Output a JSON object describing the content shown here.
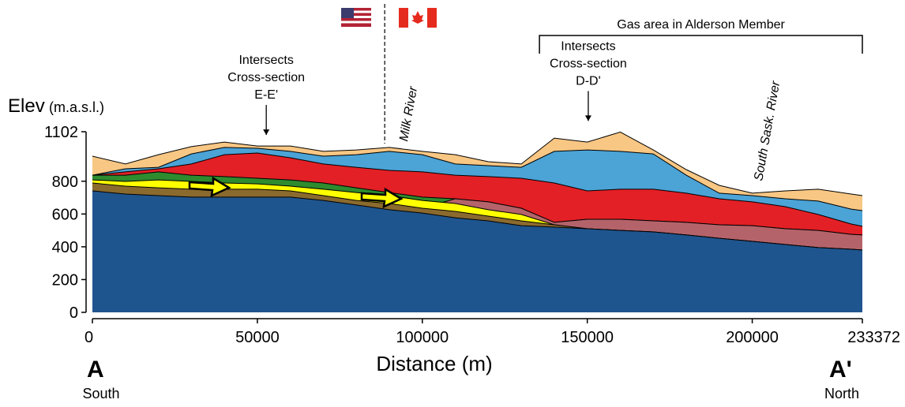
{
  "chart_data": {
    "type": "layered-area",
    "y_label": "Elev",
    "y_label_unit": "(m.a.s.l.)",
    "x_label": "Distance (m)",
    "start": {
      "label": "A",
      "direction": "South"
    },
    "end": {
      "label": "A'",
      "direction": "North"
    },
    "xlim": [
      0,
      233372
    ],
    "ylim": [
      0,
      1102
    ],
    "xticks": [
      0,
      50000,
      100000,
      150000,
      200000,
      233372
    ],
    "yticks": [
      0,
      200,
      400,
      600,
      800,
      1102
    ],
    "x": [
      0,
      10000,
      20000,
      30000,
      40000,
      50000,
      60000,
      70000,
      80000,
      90000,
      100000,
      110000,
      120000,
      130000,
      140000,
      150000,
      160000,
      170000,
      180000,
      190000,
      200000,
      210000,
      220000,
      230000,
      233372
    ],
    "series": [
      {
        "color": "#f9c784",
        "values": [
          953,
          905,
          962,
          1011,
          1039,
          1015,
          1015,
          982,
          991,
          1006,
          982,
          962,
          919,
          905,
          1063,
          1039,
          1100,
          991,
          871,
          775,
          727,
          741,
          751,
          722,
          712
        ]
      },
      {
        "color": "#4ba3d6",
        "values": [
          837,
          876,
          885,
          967,
          1006,
          1001,
          982,
          953,
          962,
          982,
          962,
          905,
          895,
          885,
          982,
          991,
          982,
          967,
          837,
          727,
          712,
          693,
          679,
          630,
          621
        ]
      },
      {
        "color": "#e32026",
        "values": [
          837,
          857,
          876,
          905,
          962,
          972,
          943,
          905,
          885,
          866,
          857,
          837,
          828,
          818,
          789,
          741,
          751,
          751,
          727,
          693,
          674,
          645,
          597,
          539,
          525
        ]
      },
      {
        "color": "#2e8b2e",
        "values": [
          837,
          837,
          857,
          837,
          828,
          818,
          808,
          789,
          760,
          731,
          703,
          693,
          674,
          635,
          549,
          568,
          568,
          558,
          549,
          534,
          529,
          510,
          500,
          476,
          472
        ]
      },
      {
        "color": "#b5636a",
        "values": [
          789,
          770,
          760,
          751,
          751,
          751,
          741,
          712,
          683,
          664,
          635,
          693,
          674,
          635,
          549,
          568,
          568,
          558,
          549,
          534,
          529,
          510,
          500,
          476,
          472
        ]
      },
      {
        "color": "#ffff00",
        "values": [
          808,
          799,
          808,
          799,
          789,
          784,
          770,
          751,
          731,
          712,
          683,
          664,
          626,
          597,
          534,
          510,
          500,
          491,
          472,
          452,
          433,
          414,
          395,
          385,
          380
        ]
      },
      {
        "color": "#8b6a2e",
        "values": [
          789,
          770,
          760,
          751,
          751,
          751,
          741,
          712,
          683,
          664,
          635,
          616,
          587,
          558,
          534,
          510,
          500,
          491,
          472,
          452,
          433,
          414,
          395,
          385,
          380
        ]
      },
      {
        "color": "#1f558e",
        "values": [
          741,
          722,
          712,
          703,
          703,
          703,
          703,
          683,
          655,
          626,
          606,
          577,
          558,
          529,
          520,
          510,
          500,
          491,
          472,
          452,
          433,
          414,
          395,
          385,
          380
        ]
      }
    ],
    "annotations": [
      {
        "lines": [
          "Intersects",
          "Cross-section",
          "E-E'"
        ],
        "x": 52700
      },
      {
        "lines": [
          "Intersects",
          "Cross-section",
          "D-D'"
        ],
        "x": 150300
      }
    ],
    "rivers": [
      {
        "label": "Milk River",
        "x": 95500
      },
      {
        "label": "South Sask. River",
        "x": 203000
      }
    ],
    "border_x": 88600,
    "gas_area": {
      "label": "Gas area in Alderson Member",
      "x": [
        135500,
        233372
      ]
    }
  }
}
